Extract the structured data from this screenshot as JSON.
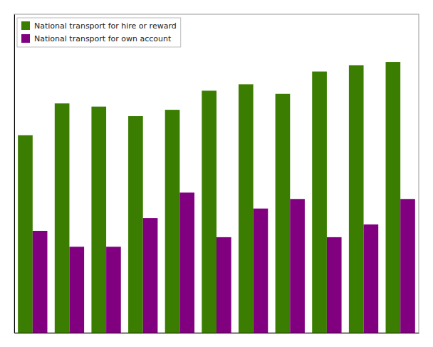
{
  "chart_data": {
    "type": "bar",
    "categories": [
      null,
      null,
      null,
      null,
      null,
      null,
      null,
      null,
      null,
      null,
      null
    ],
    "series": [
      {
        "name": "National transport for hire or reward",
        "color": "#3a7d00",
        "values": [
          62,
          72,
          71,
          68,
          70,
          76,
          78,
          75,
          82,
          84,
          85
        ]
      },
      {
        "name": "National transport for own account",
        "color": "#800080",
        "values": [
          32,
          27,
          27,
          36,
          44,
          30,
          39,
          42,
          30,
          34,
          42
        ]
      }
    ],
    "ylim": [
      0,
      100
    ],
    "yticks": [],
    "grid": false,
    "legend": "upper left",
    "tick_labels": false
  }
}
